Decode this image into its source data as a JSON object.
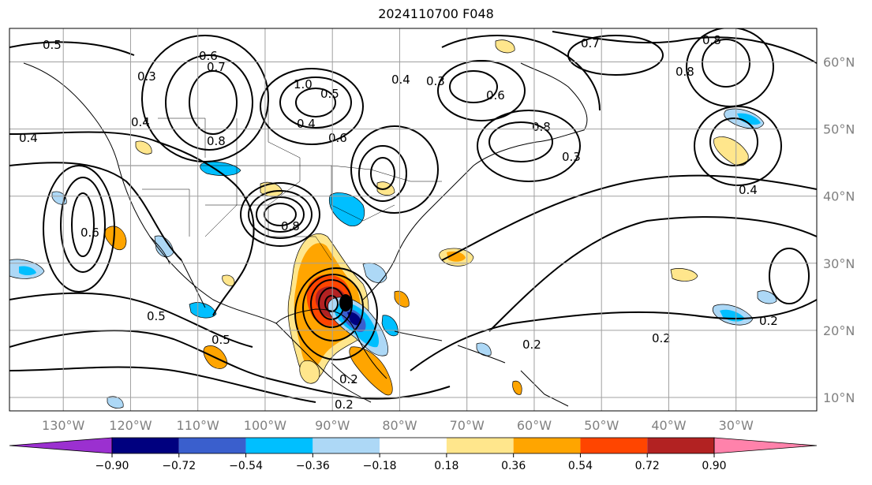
{
  "title": "2024110700 F048",
  "map": {
    "projection": "cylindrical",
    "lon_range": [
      -138,
      -18
    ],
    "lat_range": [
      8,
      65
    ],
    "lon_labels": [
      "130°W",
      "120°W",
      "110°W",
      "100°W",
      "90°W",
      "80°W",
      "70°W",
      "60°W",
      "50°W",
      "40°W",
      "30°W"
    ],
    "lon_values": [
      -130,
      -120,
      -110,
      -100,
      -90,
      -80,
      -70,
      -60,
      -50,
      -40,
      -30
    ],
    "lat_labels": [
      "10°N",
      "20°N",
      "30°N",
      "40°N",
      "50°N",
      "60°N"
    ],
    "lat_values": [
      10,
      20,
      30,
      40,
      50,
      60
    ],
    "grid_color": "#a0a0a0",
    "contour_labels": [
      "0.5",
      "0.6",
      "0.7",
      "0.3",
      "1.0",
      "0.5",
      "0.4",
      "0.8",
      "0.4",
      "0.6",
      "0.4",
      "0.3",
      "0.6",
      "0.8",
      "0.4",
      "0.6",
      "0.8",
      "0.5",
      "0.5",
      "0.2",
      "0.2",
      "0.2",
      "0.3",
      "0.2",
      "0.4",
      "0.2",
      "0.8",
      "0.7",
      "0.8"
    ]
  },
  "colorbar": {
    "extend": "both",
    "tick_labels": [
      "−0.90",
      "−0.72",
      "−0.54",
      "−0.36",
      "−0.18",
      "0.18",
      "0.36",
      "0.54",
      "0.72",
      "0.90"
    ],
    "colors": [
      "#9b30d0",
      "#00007f",
      "#3a5fcd",
      "#00bfff",
      "#add8f6",
      "#ffffff",
      "#ffe68c",
      "#ffa500",
      "#ff4500",
      "#b22222",
      "#ff82ab"
    ]
  }
}
